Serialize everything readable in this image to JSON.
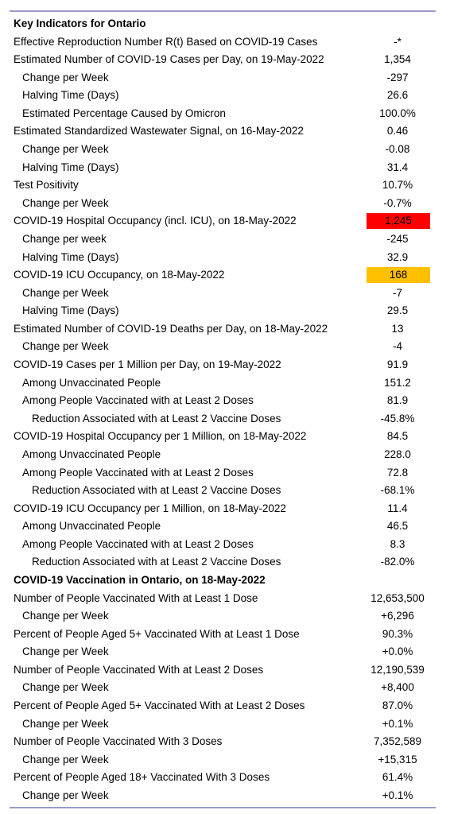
{
  "table": {
    "sections": [
      {
        "heading": "Key Indicators for Ontario",
        "rows": [
          {
            "label": "Effective Reproduction Number R(t) Based on COVID-19 Cases",
            "value": "-*"
          },
          {
            "label": "Estimated Number of COVID-19 Cases per Day, on 19-May-2022",
            "value": "1,354",
            "rows": [
              {
                "label": "Change per Week",
                "value": "-297"
              },
              {
                "label": "Halving Time (Days)",
                "value": "26.6"
              },
              {
                "label": "Estimated Percentage Caused by Omicron",
                "value": "100.0%"
              }
            ]
          },
          {
            "label": "Estimated Standardized Wastewater Signal, on 16-May-2022",
            "value": "0.46",
            "rows": [
              {
                "label": "Change per Week",
                "value": "-0.08"
              },
              {
                "label": "Halving Time (Days)",
                "value": "31.4"
              }
            ]
          },
          {
            "label": "Test Positivity",
            "value": "10.7%",
            "rows": [
              {
                "label": "Change per Week",
                "value": "-0.7%"
              }
            ]
          },
          {
            "label": "COVID-19 Hospital Occupancy (incl. ICU), on 18-May-2022",
            "value": "1,245",
            "highlight": "#ff0000",
            "rows": [
              {
                "label": "Change per week",
                "value": "-245"
              },
              {
                "label": "Halving Time (Days)",
                "value": "32.9"
              }
            ]
          },
          {
            "label": "COVID-19 ICU Occupancy, on 18-May-2022",
            "value": "168",
            "highlight": "#ffc000",
            "rows": [
              {
                "label": "Change per Week",
                "value": "-7"
              },
              {
                "label": "Halving Time (Days)",
                "value": "29.5"
              }
            ]
          },
          {
            "label": "Estimated Number of COVID-19 Deaths per Day, on 18-May-2022",
            "value": "13",
            "rows": [
              {
                "label": "Change per Week",
                "value": "-4"
              }
            ]
          },
          {
            "label": "COVID-19 Cases per 1 Million per Day, on 19-May-2022",
            "value": "91.9",
            "rows": [
              {
                "label": "Among Unvaccinated People",
                "value": "151.2"
              },
              {
                "label": "Among People Vaccinated with at Least 2 Doses",
                "value": "81.9",
                "rows": [
                  {
                    "label": "Reduction Associated with at Least 2 Vaccine Doses",
                    "value": "-45.8%"
                  }
                ]
              }
            ]
          },
          {
            "label": "COVID-19 Hospital Occupancy per 1 Million, on 18-May-2022",
            "value": "84.5",
            "rows": [
              {
                "label": "Among Unvaccinated People",
                "value": "228.0"
              },
              {
                "label": "Among People Vaccinated with at Least 2 Doses",
                "value": "72.8",
                "rows": [
                  {
                    "label": "Reduction Associated with at Least 2 Vaccine Doses",
                    "value": "-68.1%"
                  }
                ]
              }
            ]
          },
          {
            "label": "COVID-19 ICU Occupancy per 1 Million, on 18-May-2022",
            "value": "11.4",
            "rows": [
              {
                "label": "Among Unvaccinated People",
                "value": "46.5"
              },
              {
                "label": "Among People Vaccinated with at Least 2 Doses",
                "value": "8.3",
                "rows": [
                  {
                    "label": "Reduction Associated with at Least 2 Vaccine Doses",
                    "value": "-82.0%"
                  }
                ]
              }
            ]
          }
        ]
      },
      {
        "heading": "COVID-19 Vaccination in Ontario, on 18-May-2022",
        "rows": [
          {
            "label": "Number of People Vaccinated With at Least 1 Dose",
            "value": "12,653,500",
            "rows": [
              {
                "label": "Change per Week",
                "value": "+6,296"
              }
            ]
          },
          {
            "label": "Percent of People Aged 5+ Vaccinated With at Least 1 Dose",
            "value": "90.3%",
            "rows": [
              {
                "label": "Change per Week",
                "value": "+0.0%"
              }
            ]
          },
          {
            "label": "Number of People Vaccinated With at Least 2 Doses",
            "value": "12,190,539",
            "rows": [
              {
                "label": "Change per Week",
                "value": "+8,400"
              }
            ]
          },
          {
            "label": "Percent of People Aged 5+ Vaccinated With at Least 2 Doses",
            "value": "87.0%",
            "rows": [
              {
                "label": "Change per Week",
                "value": "+0.1%"
              }
            ]
          },
          {
            "label": "Number of People Vaccinated With 3 Doses",
            "value": "7,352,589",
            "rows": [
              {
                "label": "Change per Week",
                "value": "+15,315"
              }
            ]
          },
          {
            "label": "Percent of People Aged 18+ Vaccinated With 3 Doses",
            "value": "61.4%",
            "rows": [
              {
                "label": "Change per Week",
                "value": "+0.1%"
              }
            ]
          }
        ]
      }
    ]
  }
}
